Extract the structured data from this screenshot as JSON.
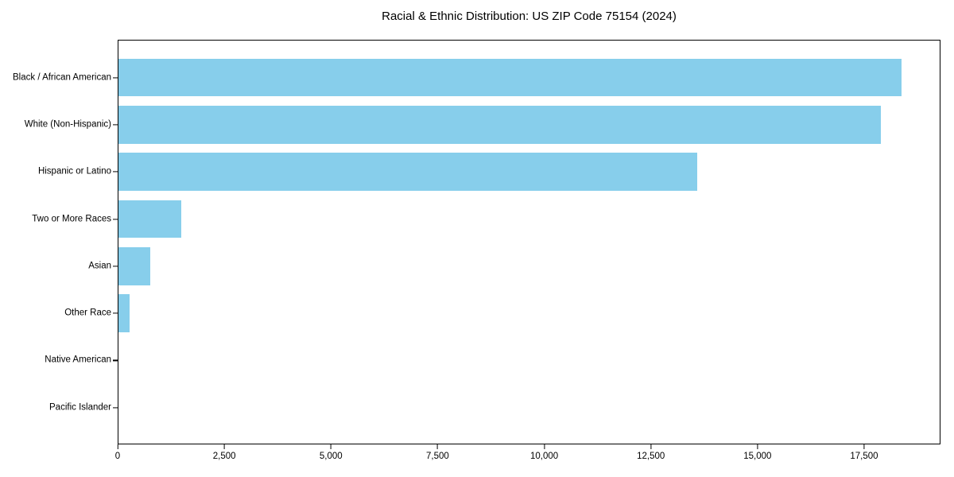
{
  "chart_data": {
    "type": "bar",
    "orientation": "horizontal",
    "title": "Racial & Ethnic Distribution: US ZIP Code 75154 (2024)",
    "categories": [
      "Black / African American",
      "White (Non-Hispanic)",
      "Hispanic or Latino",
      "Two or More Races",
      "Asian",
      "Other Race",
      "Native American",
      "Pacific Islander"
    ],
    "values": [
      18400,
      17900,
      13600,
      1480,
      740,
      260,
      0,
      0
    ],
    "xlabel": "",
    "ylabel": "",
    "xlim": [
      0,
      19290
    ],
    "x_ticks": [
      {
        "value": 0,
        "label": "0"
      },
      {
        "value": 2500,
        "label": "2,500"
      },
      {
        "value": 5000,
        "label": "5,000"
      },
      {
        "value": 7500,
        "label": "7,500"
      },
      {
        "value": 10000,
        "label": "10,000"
      },
      {
        "value": 12500,
        "label": "12,500"
      },
      {
        "value": 15000,
        "label": "15,000"
      },
      {
        "value": 17500,
        "label": "17,500"
      }
    ],
    "grid": false,
    "legend_position": "none",
    "bar_color": "#87CEEB",
    "axis_color": "#000000",
    "text_color": "#000000",
    "background": "#ffffff"
  }
}
